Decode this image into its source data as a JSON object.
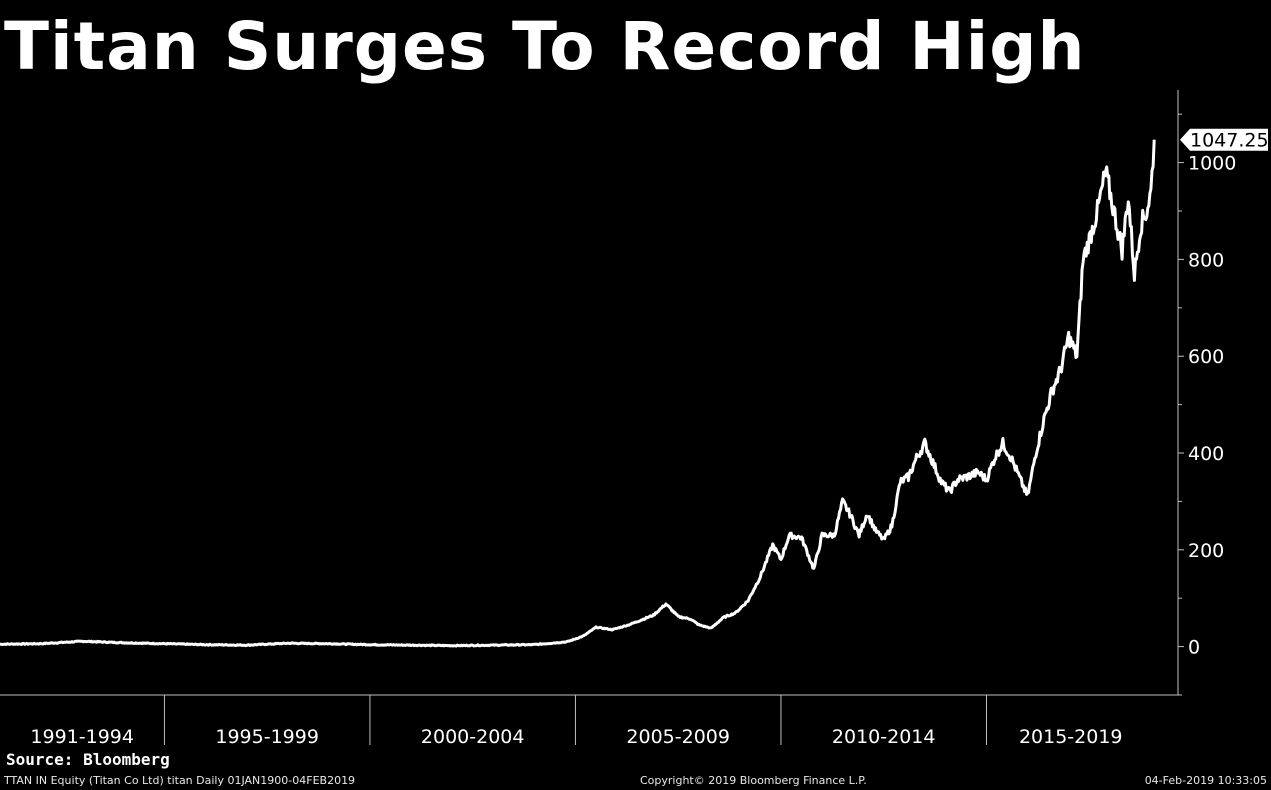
{
  "chart_data": {
    "type": "line",
    "title": "Titan Surges To Record High",
    "ylim": [
      -100,
      1150
    ],
    "y_ticks": [
      0,
      200,
      400,
      600,
      800,
      1000
    ],
    "x_range": [
      1991,
      2019.1
    ],
    "x_groups": [
      {
        "label": "1991-1994",
        "start": 1991,
        "end": 1995
      },
      {
        "label": "1995-1999",
        "start": 1995,
        "end": 2000
      },
      {
        "label": "2000-2004",
        "start": 2000,
        "end": 2005
      },
      {
        "label": "2005-2009",
        "start": 2005,
        "end": 2010
      },
      {
        "label": "2010-2014",
        "start": 2010,
        "end": 2015
      },
      {
        "label": "2015-2019",
        "start": 2015,
        "end": 2019.1
      }
    ],
    "last_value_label": "1047.25",
    "last_value": 1047.25,
    "series": [
      {
        "color": "#ffffff",
        "x": [
          1991.0,
          1992.0,
          1993.0,
          1994.0,
          1995.0,
          1996.0,
          1997.0,
          1998.0,
          1999.0,
          2000.0,
          2001.0,
          2002.0,
          2003.0,
          2004.0,
          2004.8,
          2005.2,
          2005.5,
          2005.9,
          2006.3,
          2006.6,
          2006.9,
          2007.2,
          2007.5,
          2007.8,
          2008.0,
          2008.3,
          2008.6,
          2008.9,
          2009.2,
          2009.5,
          2009.8,
          2010.0,
          2010.2,
          2010.5,
          2010.8,
          2011.0,
          2011.3,
          2011.5,
          2011.7,
          2011.9,
          2012.1,
          2012.3,
          2012.5,
          2012.7,
          2012.9,
          2013.1,
          2013.3,
          2013.5,
          2013.7,
          2013.9,
          2014.1,
          2014.3,
          2014.5,
          2014.8,
          2015.0,
          2015.2,
          2015.4,
          2015.6,
          2015.8,
          2016.0,
          2016.2,
          2016.4,
          2016.6,
          2016.8,
          2017.0,
          2017.2,
          2017.35,
          2017.5,
          2017.7,
          2017.9,
          2018.0,
          2018.15,
          2018.3,
          2018.45,
          2018.6,
          2018.75,
          2018.9,
          2019.0,
          2019.08
        ],
        "values": [
          5,
          6,
          11,
          8,
          6,
          4,
          3,
          7,
          6,
          4,
          3,
          2,
          3,
          4,
          10,
          22,
          40,
          35,
          45,
          55,
          65,
          88,
          62,
          57,
          45,
          38,
          60,
          70,
          95,
          145,
          210,
          180,
          230,
          225,
          160,
          230,
          230,
          300,
          270,
          230,
          275,
          240,
          220,
          250,
          340,
          350,
          390,
          420,
          380,
          340,
          320,
          345,
          350,
          360,
          345,
          390,
          420,
          390,
          350,
          310,
          400,
          470,
          530,
          570,
          640,
          600,
          800,
          840,
          900,
          980,
          940,
          880,
          820,
          930,
          770,
          870,
          900,
          940,
          1047.25
        ]
      }
    ]
  },
  "source_label": "Source: Bloomberg",
  "footer": {
    "left": "TTAN IN Equity (Titan Co Ltd) titan  Daily 01JAN1900-04FEB2019",
    "center": "Copyright© 2019 Bloomberg Finance L.P.",
    "right": "04-Feb-2019 10:33:05"
  }
}
